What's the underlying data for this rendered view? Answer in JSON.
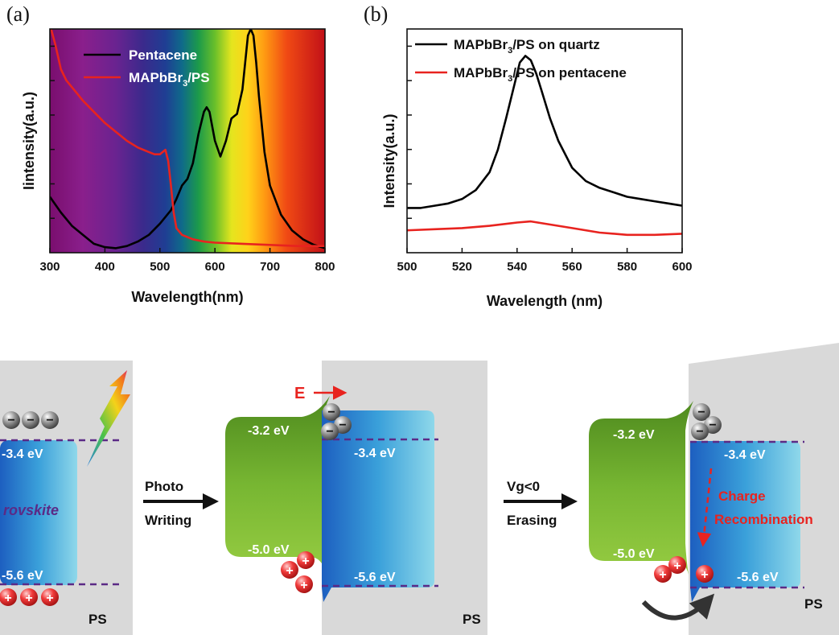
{
  "chart_data": [
    {
      "id": "a",
      "type": "line",
      "panel_label": "(a)",
      "xlabel": "Wavelength(nm)",
      "ylabel": "Iintensity(a.u.)",
      "xlim": [
        300,
        800
      ],
      "ylim": [
        0,
        1
      ],
      "xticks": [
        "300",
        "400",
        "500",
        "600",
        "700",
        "800"
      ],
      "legend_position": "top-left",
      "background": "visible-spectrum rainbow gradient",
      "series": [
        {
          "name": "Pentacene",
          "color": "#000000",
          "x": [
            300,
            320,
            340,
            360,
            380,
            400,
            420,
            440,
            460,
            480,
            500,
            520,
            530,
            540,
            550,
            560,
            570,
            580,
            585,
            590,
            600,
            610,
            620,
            630,
            635,
            640,
            650,
            655,
            660,
            665,
            670,
            675,
            680,
            690,
            700,
            720,
            740,
            760,
            780,
            800
          ],
          "y": [
            0.25,
            0.18,
            0.12,
            0.08,
            0.04,
            0.025,
            0.02,
            0.03,
            0.05,
            0.08,
            0.13,
            0.19,
            0.24,
            0.3,
            0.33,
            0.4,
            0.53,
            0.63,
            0.65,
            0.63,
            0.5,
            0.43,
            0.5,
            0.6,
            0.61,
            0.62,
            0.73,
            0.85,
            0.97,
            1.0,
            0.97,
            0.85,
            0.7,
            0.45,
            0.3,
            0.17,
            0.1,
            0.06,
            0.035,
            0.02
          ]
        },
        {
          "name": "MAPbBr3/PS",
          "color": "#e8231f",
          "x": [
            300,
            310,
            320,
            330,
            340,
            350,
            360,
            380,
            400,
            420,
            440,
            460,
            480,
            490,
            500,
            505,
            510,
            515,
            520,
            525,
            530,
            540,
            560,
            580,
            600,
            650,
            700,
            750,
            800
          ],
          "y": [
            1.02,
            0.93,
            0.82,
            0.77,
            0.74,
            0.71,
            0.68,
            0.63,
            0.58,
            0.54,
            0.5,
            0.47,
            0.45,
            0.44,
            0.44,
            0.45,
            0.46,
            0.41,
            0.3,
            0.18,
            0.11,
            0.08,
            0.06,
            0.05,
            0.045,
            0.04,
            0.035,
            0.03,
            0.03
          ]
        }
      ]
    },
    {
      "id": "b",
      "type": "line",
      "panel_label": "(b)",
      "xlabel": "Wavelength (nm)",
      "ylabel": "Intensity(a.u.)",
      "xlim": [
        500,
        600
      ],
      "ylim": [
        0,
        1
      ],
      "xticks": [
        "500",
        "520",
        "540",
        "560",
        "580",
        "600"
      ],
      "legend_position": "top-left",
      "series": [
        {
          "name": "MAPbBr3/PS on quartz",
          "color": "#000000",
          "x": [
            500,
            505,
            510,
            515,
            520,
            525,
            530,
            533,
            536,
            539,
            541,
            543,
            545,
            547,
            549,
            552,
            555,
            560,
            565,
            570,
            575,
            580,
            585,
            590,
            595,
            600
          ],
          "y": [
            0.2,
            0.2,
            0.21,
            0.22,
            0.24,
            0.28,
            0.36,
            0.46,
            0.6,
            0.75,
            0.85,
            0.88,
            0.86,
            0.8,
            0.72,
            0.6,
            0.5,
            0.38,
            0.32,
            0.29,
            0.27,
            0.25,
            0.24,
            0.23,
            0.22,
            0.21
          ]
        },
        {
          "name": "MAPbBr3/PS on pentacene",
          "color": "#e8231f",
          "x": [
            500,
            510,
            520,
            530,
            540,
            545,
            550,
            560,
            570,
            580,
            590,
            600
          ],
          "y": [
            0.1,
            0.105,
            0.11,
            0.12,
            0.135,
            0.14,
            0.13,
            0.11,
            0.09,
            0.08,
            0.08,
            0.085
          ]
        }
      ]
    }
  ],
  "schematic": {
    "stage1": {
      "levels": [
        "-3.4 eV",
        "-5.6 eV"
      ],
      "material": "rovskite",
      "ps": "PS"
    },
    "arrow1": {
      "top": "Photo",
      "bottom": "Writing"
    },
    "stage2": {
      "field": "E",
      "pentacene_levels": [
        "-3.2 eV",
        "-5.0 eV"
      ],
      "perovskite_levels": [
        "-3.4 eV",
        "-5.6 eV"
      ],
      "ps": "PS"
    },
    "arrow2": {
      "top": "Vg<0",
      "bottom": "Erasing"
    },
    "stage3": {
      "pentacene_levels": [
        "-3.2 eV",
        "-5.0 eV"
      ],
      "perovskite_levels": [
        "-3.4 eV",
        "-5.6 eV"
      ],
      "recombination": [
        "Charge",
        "Recombination"
      ],
      "ps": "PS"
    },
    "electron_symbol": "−",
    "hole_symbol": "+"
  },
  "colors": {
    "black": "#000000",
    "red": "#e8231f",
    "purple_dash": "#5b2a86",
    "ps_gray": "#d9d9d9"
  }
}
